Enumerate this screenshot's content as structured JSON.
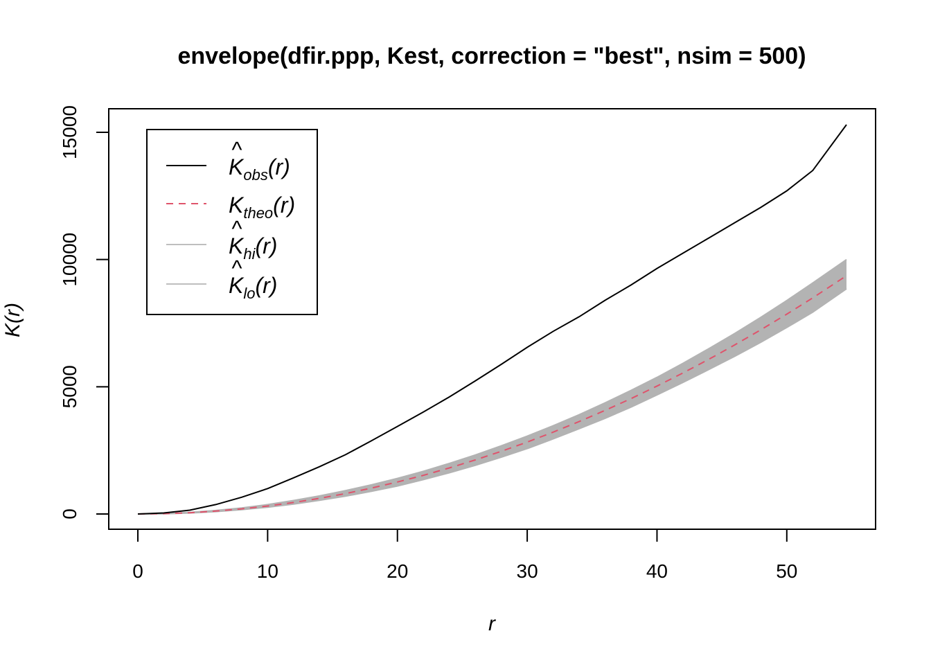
{
  "chart_data": {
    "type": "line",
    "title": "envelope(dfir.ppp, Kest, correction = \"best\", nsim = 500)",
    "xlabel": "r",
    "ylabel": "K(r)",
    "xlim": [
      0,
      54.6
    ],
    "ylim": [
      0,
      15300
    ],
    "x_ticks": [
      "0",
      "10",
      "20",
      "30",
      "40",
      "50"
    ],
    "y_ticks": [
      "0",
      "5000",
      "10000",
      "15000"
    ],
    "grid": false,
    "legend_position": "top-left",
    "legend": [
      {
        "base": "K",
        "hat": true,
        "sub": "obs",
        "arg": "(r)",
        "color": "#000000",
        "dash": "solid"
      },
      {
        "base": "K",
        "hat": false,
        "sub": "theo",
        "arg": "(r)",
        "color": "#DF536B",
        "dash": "dashed"
      },
      {
        "base": "K",
        "hat": true,
        "sub": "hi",
        "arg": "(r)",
        "color": "#BEBEBE",
        "dash": "solid"
      },
      {
        "base": "K",
        "hat": true,
        "sub": "lo",
        "arg": "(r)",
        "color": "#BEBEBE",
        "dash": "solid"
      }
    ],
    "x": [
      0,
      2,
      4,
      6,
      8,
      10,
      12,
      14,
      16,
      18,
      20,
      22,
      24,
      26,
      28,
      30,
      32,
      34,
      36,
      38,
      40,
      42,
      44,
      46,
      48,
      50,
      52,
      54.6
    ],
    "series": [
      {
        "name": "obs",
        "color": "#000000",
        "values": [
          0,
          40,
          150,
          370,
          660,
          1000,
          1420,
          1860,
          2330,
          2880,
          3440,
          4010,
          4600,
          5230,
          5880,
          6550,
          7180,
          7750,
          8400,
          9000,
          9650,
          10250,
          10850,
          11450,
          12050,
          12700,
          13500,
          15300
        ]
      },
      {
        "name": "theo",
        "color": "#DF536B",
        "values": [
          0,
          12.6,
          50,
          113,
          201,
          314,
          452,
          616,
          804,
          1018,
          1257,
          1520,
          1810,
          2124,
          2463,
          2827,
          3217,
          3632,
          4072,
          4536,
          5027,
          5542,
          6082,
          6648,
          7238,
          7854,
          8495,
          9365
        ]
      },
      {
        "name": "hi",
        "color": "#BEBEBE",
        "values": [
          0,
          20,
          65,
          140,
          240,
          370,
          530,
          710,
          920,
          1150,
          1400,
          1680,
          1990,
          2320,
          2680,
          3060,
          3470,
          3900,
          4370,
          4860,
          5370,
          5920,
          6500,
          7100,
          7730,
          8390,
          9080,
          10000
        ]
      },
      {
        "name": "lo",
        "color": "#BEBEBE",
        "values": [
          0,
          6,
          38,
          92,
          168,
          268,
          390,
          535,
          700,
          890,
          1100,
          1350,
          1620,
          1910,
          2230,
          2570,
          2950,
          3350,
          3760,
          4200,
          4680,
          5170,
          5680,
          6200,
          6750,
          7330,
          7930,
          8850
        ]
      }
    ]
  }
}
